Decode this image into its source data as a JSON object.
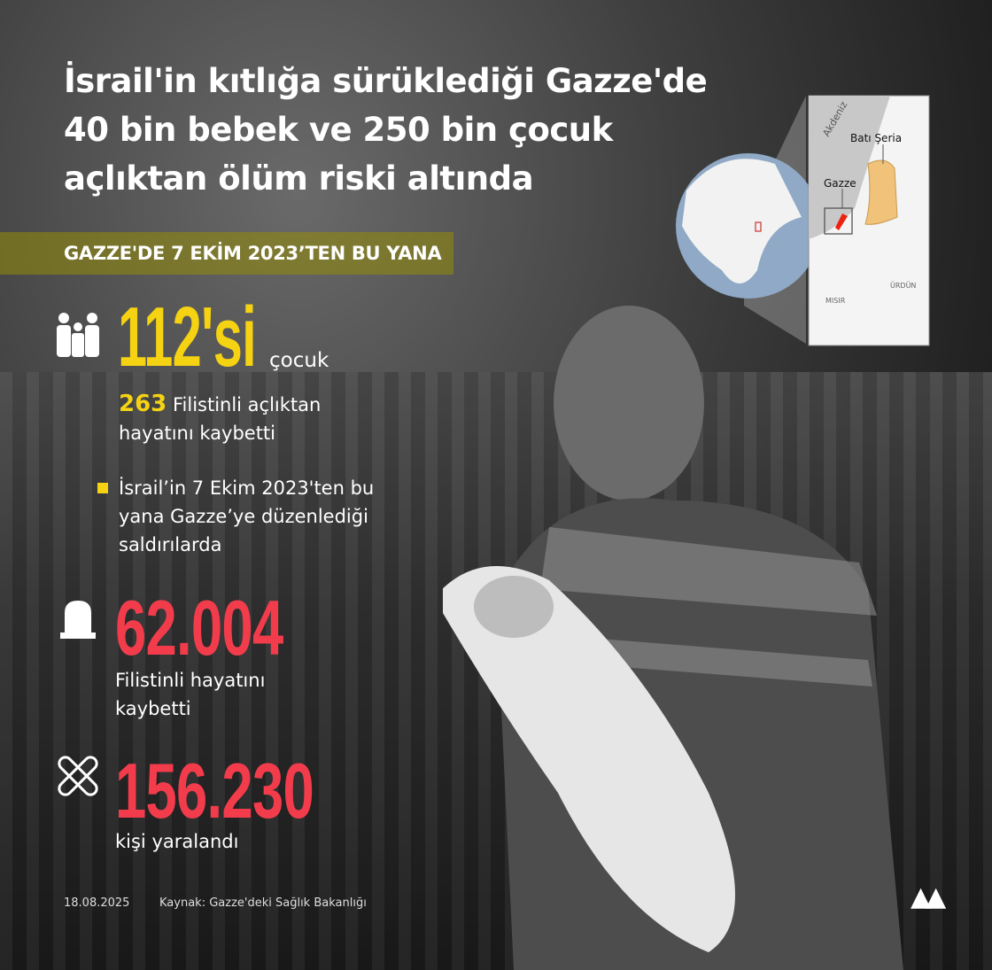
{
  "title": [
    "İsrail'in kıtlığa sürüklediği Gazze'de",
    "40 bin bebek ve 250 bin çocuk",
    "açlıktan ölüm riski altında"
  ],
  "band": "GAZZE'DE 7 EKİM 2023’TEN BU YANA",
  "map": {
    "sea": "Akdeniz",
    "west_bank": "Batı Şeria",
    "gaza": "Gazze",
    "egypt": "MISIR",
    "jordan": "ÜRDÜN"
  },
  "children": {
    "value": "112'si",
    "unit": "çocuk",
    "icon": "family-icon"
  },
  "starvation": {
    "value": "263",
    "text1": "Filistinli açlıktan",
    "text2": "hayatını kaybetti"
  },
  "note": [
    "İsrail’in 7 Ekim 2023'ten bu",
    "yana Gazze’ye düzenlediği",
    "saldırılarda"
  ],
  "killed": {
    "value": "62.004",
    "text1": "Filistinli hayatını",
    "text2": "kaybetti",
    "icon": "gravestone-icon"
  },
  "injured": {
    "value": "156.230",
    "text": "kişi yaralandı",
    "icon": "bandage-icon"
  },
  "footer": {
    "date": "18.08.2025",
    "source": "Kaynak: Gazze'deki Sağlık Bakanlığı",
    "logo": "AA"
  },
  "colors": {
    "yellow": "#f5d313",
    "red": "#f23c4c",
    "band": "#968c0a"
  }
}
